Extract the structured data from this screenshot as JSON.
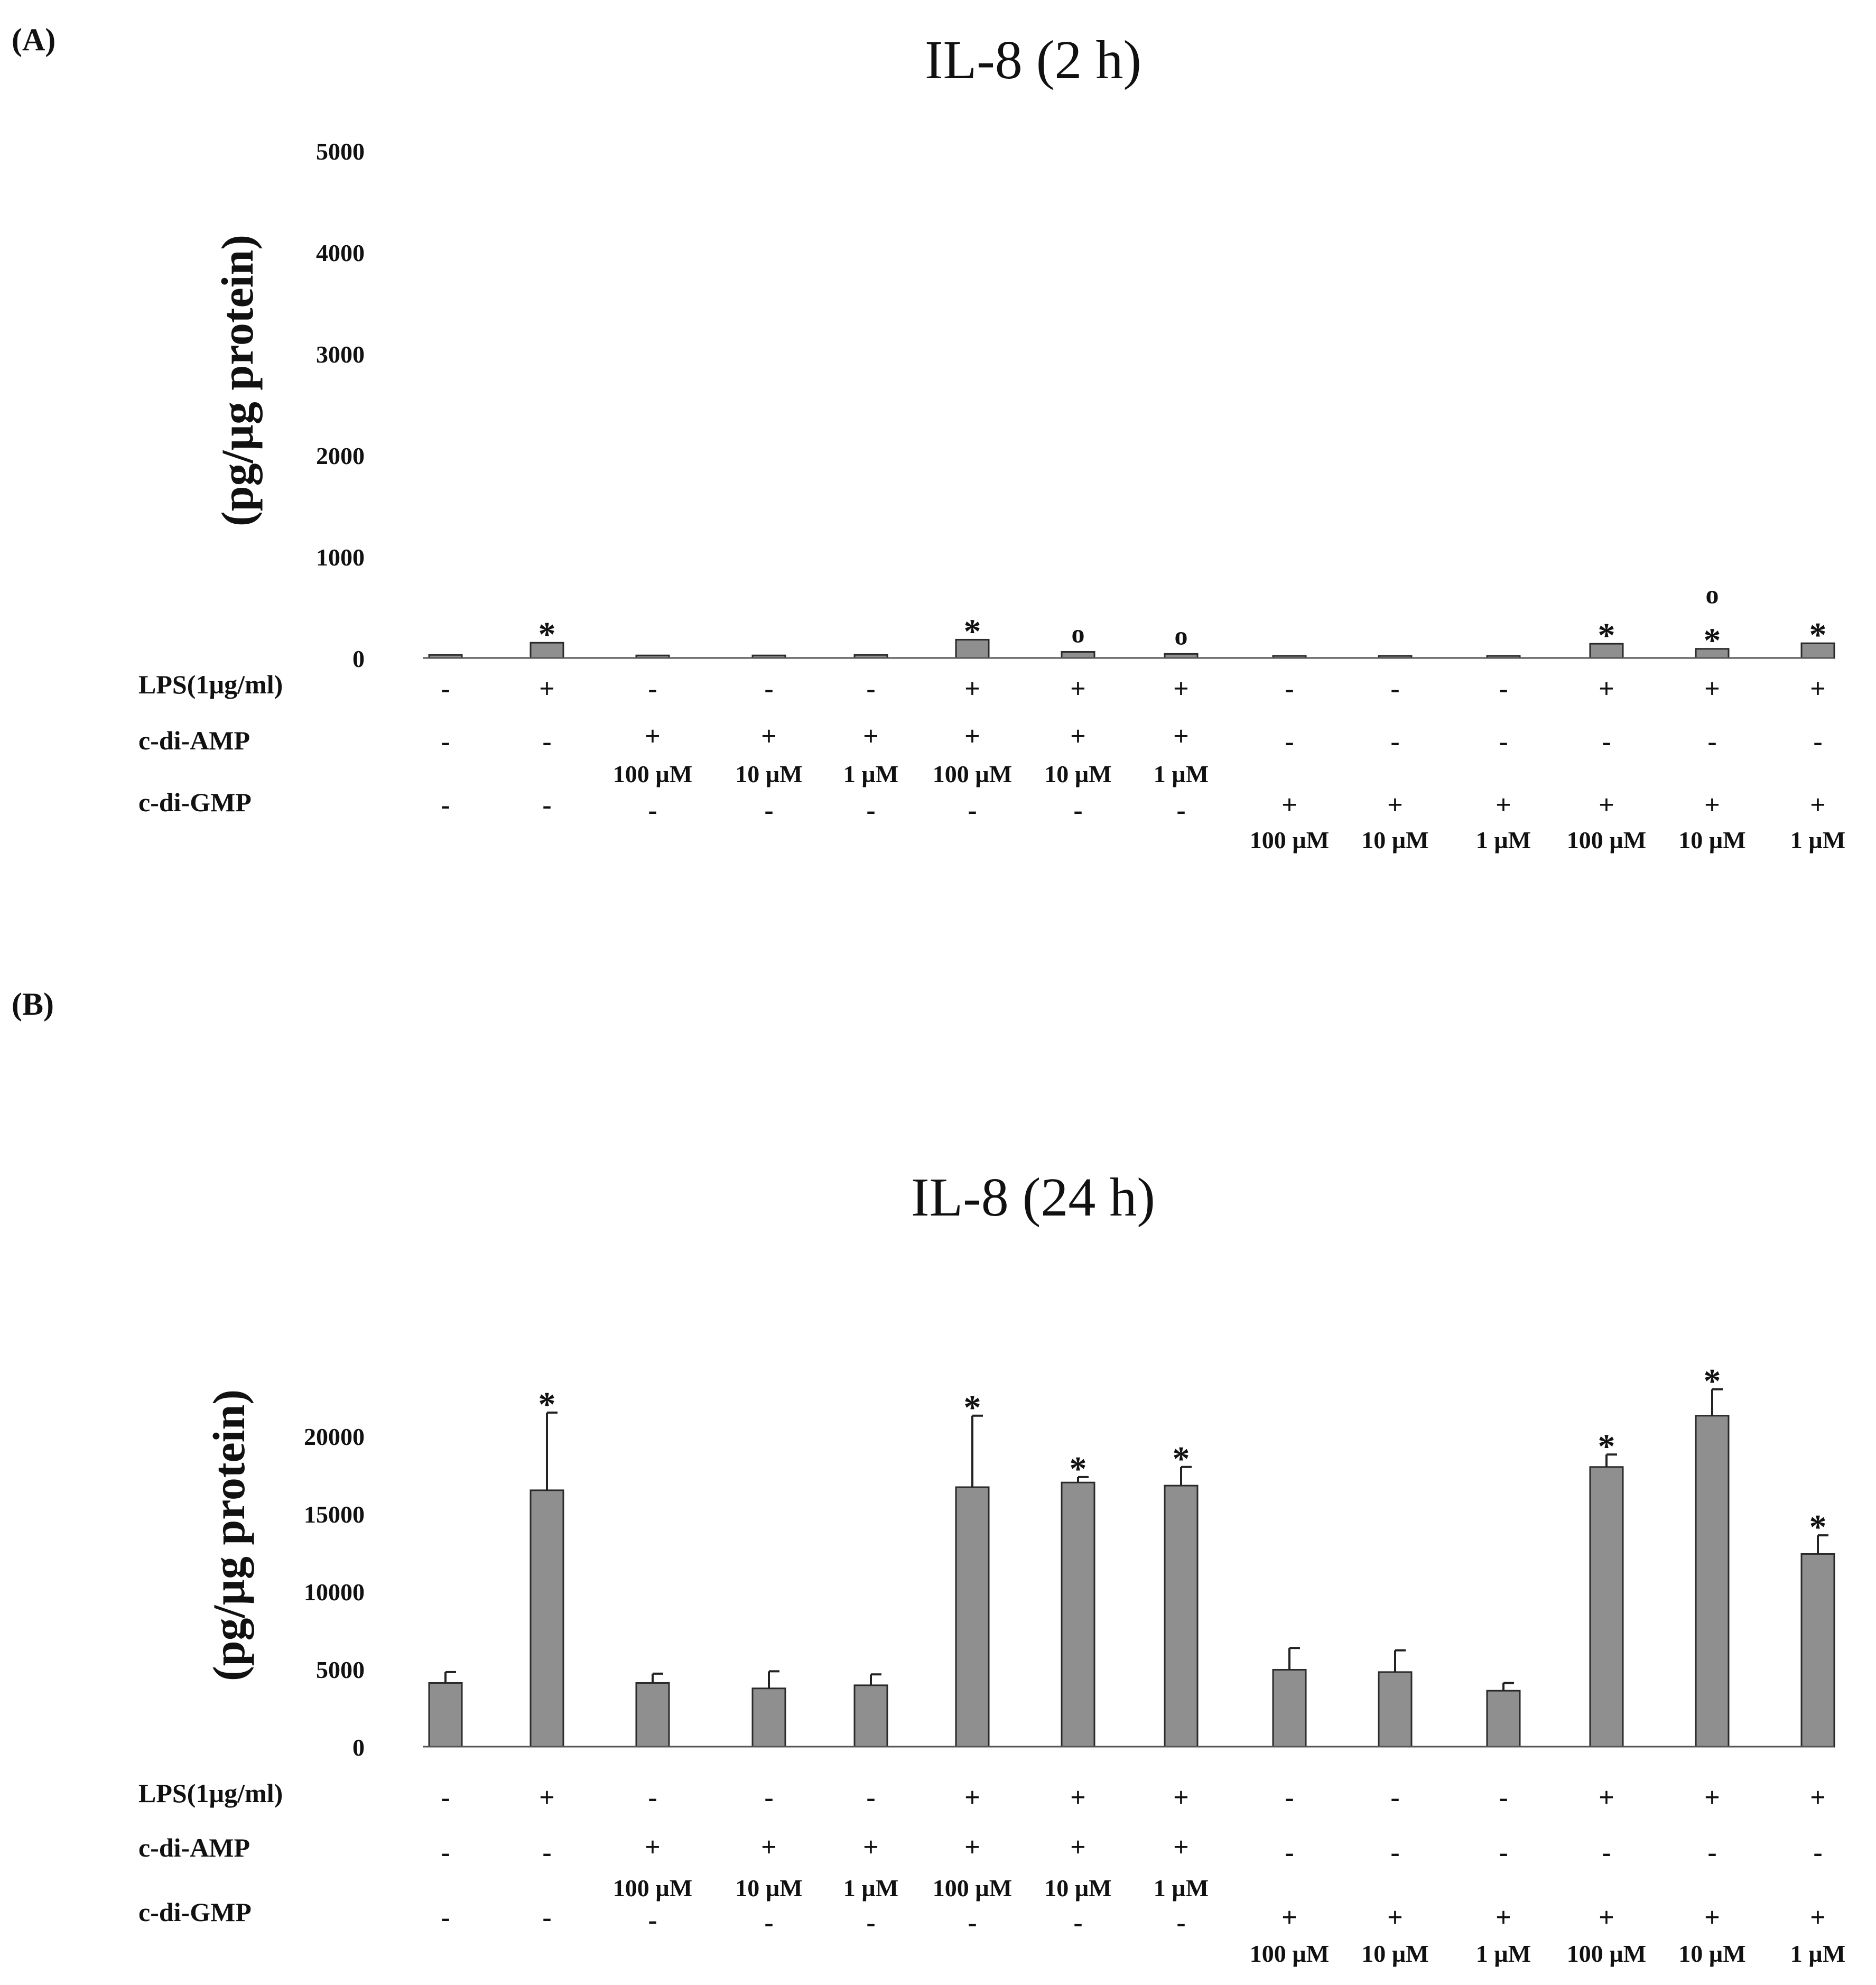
{
  "colors": {
    "bar": "#8f8f8f",
    "bar_stroke": "#2a2a2a",
    "axis": "#555555",
    "text": "#111111"
  },
  "panels": [
    {
      "label": "(A)",
      "chart_data": {
        "type": "bar",
        "title": "IL-8 (2 h)",
        "ylabel": "(pg/µg protein)",
        "xlabel": "",
        "ylim": [
          0,
          5000
        ],
        "yticks": [
          0,
          1000,
          2000,
          3000,
          4000,
          5000
        ],
        "ytick_labels": [
          "0",
          "1000",
          "2000",
          "3000",
          "4000",
          "5000"
        ],
        "values": [
          30,
          150,
          25,
          25,
          30,
          180,
          60,
          40,
          15,
          15,
          10,
          140,
          90,
          145
        ],
        "errors": [
          0,
          0,
          0,
          0,
          0,
          0,
          0,
          0,
          0,
          0,
          0,
          0,
          0,
          0
        ],
        "markers": [
          "",
          "*",
          "",
          "",
          "",
          "*",
          "o",
          "o",
          "",
          "",
          "",
          "*",
          "o\n*",
          "*"
        ],
        "legend": "none",
        "grid": false
      },
      "treatments": {
        "lps_label": "LPS(1µg/ml)",
        "lps": [
          "-",
          "+",
          "-",
          "-",
          "-",
          "+",
          "+",
          "+",
          "-",
          "-",
          "-",
          "+",
          "+",
          "+"
        ],
        "amp_label": "c-di-AMP",
        "amp": [
          "-",
          "-",
          "+",
          "+",
          "+",
          "+",
          "+",
          "+",
          "-",
          "-",
          "-",
          "-",
          "-",
          "-"
        ],
        "amp_conc": [
          "",
          "",
          "100 µM",
          "10 µM",
          "1 µM",
          "100 µM",
          "10 µM",
          "1 µM",
          "",
          "",
          "",
          "",
          "",
          ""
        ],
        "gmp_label": "c-di-GMP",
        "gmp": [
          "-",
          "-",
          "-",
          "-",
          "-",
          "-",
          "-",
          "-",
          "+",
          "+",
          "+",
          "+",
          "+",
          "+"
        ],
        "gmp_conc": [
          "",
          "",
          "",
          "",
          "",
          "",
          "",
          "",
          "100 µM",
          "10 µM",
          "1 µM",
          "100 µM",
          "10 µM",
          "1 µM"
        ]
      }
    },
    {
      "label": "(B)",
      "chart_data": {
        "type": "bar",
        "title": "IL-8 (24 h)",
        "ylabel": "(pg/µg protein)",
        "xlabel": "",
        "ylim": [
          0,
          20000
        ],
        "yticks": [
          0,
          5000,
          10000,
          15000,
          20000
        ],
        "ytick_labels": [
          "0",
          "5000",
          "10000",
          "15000",
          "20000"
        ],
        "values": [
          4100,
          16500,
          4100,
          3750,
          3950,
          16700,
          17000,
          16800,
          4950,
          4800,
          3600,
          18000,
          21300,
          12400
        ],
        "errors": [
          700,
          5000,
          600,
          1100,
          700,
          4600,
          350,
          1200,
          1400,
          1400,
          500,
          800,
          1700,
          1200
        ],
        "markers": [
          "",
          "*",
          "",
          "",
          "",
          "*",
          "*",
          "*",
          "",
          "",
          "",
          "*",
          "*",
          "*"
        ],
        "legend": "none",
        "grid": false
      },
      "treatments": {
        "lps_label": "LPS(1µg/ml)",
        "lps": [
          "-",
          "+",
          "-",
          "-",
          "-",
          "+",
          "+",
          "+",
          "-",
          "-",
          "-",
          "+",
          "+",
          "+"
        ],
        "amp_label": "c-di-AMP",
        "amp": [
          "-",
          "-",
          "+",
          "+",
          "+",
          "+",
          "+",
          "+",
          "-",
          "-",
          "-",
          "-",
          "-",
          "-"
        ],
        "amp_conc": [
          "",
          "",
          "100 µM",
          "10 µM",
          "1 µM",
          "100 µM",
          "10 µM",
          "1 µM",
          "",
          "",
          "",
          "",
          "",
          ""
        ],
        "gmp_label": "c-di-GMP",
        "gmp": [
          "-",
          "-",
          "-",
          "-",
          "-",
          "-",
          "-",
          "-",
          "+",
          "+",
          "+",
          "+",
          "+",
          "+"
        ],
        "gmp_conc": [
          "",
          "",
          "",
          "",
          "",
          "",
          "",
          "",
          "100 µM",
          "10 µM",
          "1 µM",
          "100 µM",
          "10 µM",
          "1 µM"
        ]
      }
    }
  ]
}
